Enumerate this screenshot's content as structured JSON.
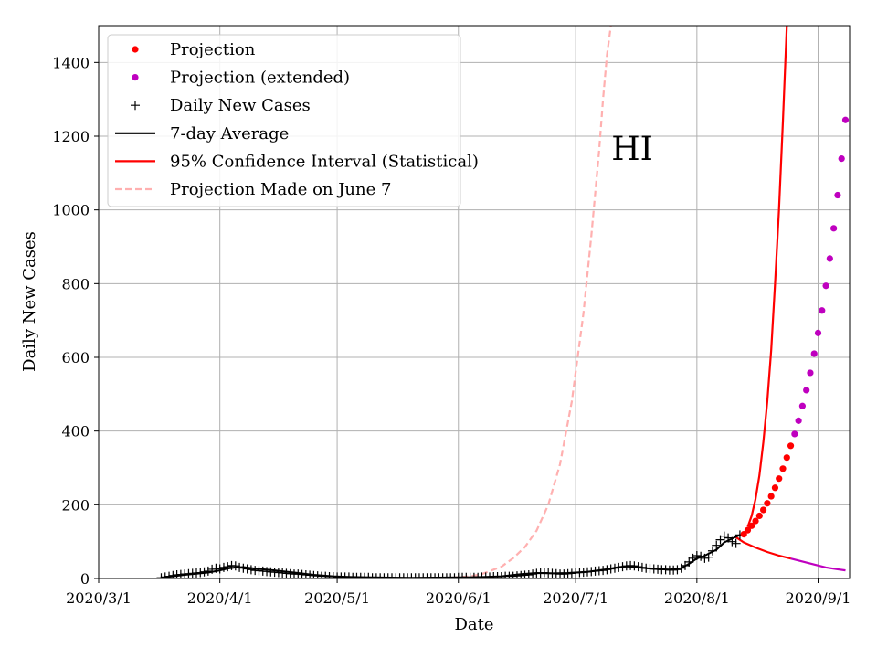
{
  "chart_data": {
    "type": "line",
    "state_label": "HI",
    "xlabel": "Date",
    "ylabel": "Daily New Cases",
    "x_range_days": [
      0,
      183
    ],
    "ylim": [
      0,
      1500
    ],
    "x_ticks": [
      {
        "day": 0,
        "label": "2020/3/1"
      },
      {
        "day": 31,
        "label": "2020/4/1"
      },
      {
        "day": 61,
        "label": "2020/5/1"
      },
      {
        "day": 92,
        "label": "2020/6/1"
      },
      {
        "day": 122,
        "label": "2020/7/1"
      },
      {
        "day": 153,
        "label": "2020/8/1"
      },
      {
        "day": 184,
        "label": "2020/9/1"
      }
    ],
    "y_ticks": [
      0,
      200,
      400,
      600,
      800,
      1000,
      1200,
      1400
    ],
    "grid": true,
    "legend_position": "top-left",
    "legend": [
      {
        "key": "projection",
        "label": "Projection",
        "marker": "dot",
        "color": "#ff0000"
      },
      {
        "key": "projection_ext",
        "label": "Projection (extended)",
        "marker": "dot",
        "color": "#bf00bf"
      },
      {
        "key": "daily",
        "label": "Daily New Cases",
        "marker": "plus",
        "color": "#000000"
      },
      {
        "key": "avg",
        "label": "7-day Average",
        "marker": "line",
        "color": "#000000"
      },
      {
        "key": "ci",
        "label": "95% Confidence Interval (Statistical)",
        "marker": "line",
        "color": "#ff0000"
      },
      {
        "key": "june7",
        "label": "Projection Made on June 7",
        "marker": "dash",
        "color": "#ffb0b0"
      }
    ],
    "daily_cases": {
      "start_day": 16,
      "values": [
        2,
        4,
        6,
        8,
        10,
        11,
        12,
        13,
        14,
        15,
        16,
        18,
        20,
        25,
        28,
        26,
        30,
        32,
        35,
        34,
        30,
        28,
        26,
        24,
        22,
        21,
        20,
        19,
        18,
        17,
        16,
        15,
        14,
        13,
        12,
        12,
        11,
        10,
        9,
        8,
        7,
        6,
        6,
        5,
        5,
        4,
        4,
        4,
        4,
        3,
        3,
        3,
        3,
        3,
        2,
        2,
        2,
        2,
        2,
        2,
        2,
        2,
        2,
        2,
        2,
        2,
        2,
        2,
        2,
        2,
        2,
        2,
        2,
        2,
        2,
        2,
        3,
        3,
        3,
        3,
        3,
        3,
        4,
        4,
        4,
        5,
        5,
        5,
        6,
        6,
        6,
        7,
        8,
        9,
        10,
        12,
        14,
        15,
        16,
        15,
        14,
        13,
        12,
        12,
        13,
        14,
        15,
        16,
        17,
        18,
        19,
        20,
        21,
        22,
        24,
        26,
        28,
        30,
        32,
        34,
        35,
        34,
        32,
        30,
        28,
        27,
        26,
        25,
        24,
        24,
        23,
        23,
        24,
        28,
        35,
        45,
        55,
        62,
        60,
        55,
        58,
        75,
        90,
        105,
        115,
        110,
        100,
        95,
        118
      ]
    },
    "seven_day_average": [
      [
        16,
        2
      ],
      [
        22,
        10
      ],
      [
        28,
        16
      ],
      [
        31,
        22
      ],
      [
        33,
        27
      ],
      [
        35,
        30
      ],
      [
        37,
        31
      ],
      [
        40,
        27
      ],
      [
        45,
        22
      ],
      [
        50,
        16
      ],
      [
        55,
        10
      ],
      [
        60,
        6
      ],
      [
        65,
        4
      ],
      [
        70,
        3
      ],
      [
        80,
        2
      ],
      [
        92,
        3
      ],
      [
        98,
        4
      ],
      [
        103,
        6
      ],
      [
        108,
        12
      ],
      [
        112,
        15
      ],
      [
        116,
        14
      ],
      [
        120,
        15
      ],
      [
        125,
        18
      ],
      [
        130,
        25
      ],
      [
        133,
        31
      ],
      [
        135,
        33
      ],
      [
        138,
        30
      ],
      [
        142,
        26
      ],
      [
        146,
        24
      ],
      [
        149,
        28
      ],
      [
        151,
        40
      ],
      [
        153,
        54
      ],
      [
        155,
        62
      ],
      [
        158,
        78
      ],
      [
        160,
        98
      ],
      [
        162,
        108
      ],
      [
        164,
        118
      ]
    ],
    "projection": [
      [
        165,
        120
      ],
      [
        166,
        131
      ],
      [
        167,
        143
      ],
      [
        168,
        156
      ],
      [
        169,
        170
      ],
      [
        170,
        186
      ],
      [
        171,
        204
      ],
      [
        172,
        223
      ],
      [
        173,
        246
      ],
      [
        174,
        271
      ],
      [
        175,
        298
      ],
      [
        176,
        328
      ],
      [
        177,
        360
      ]
    ],
    "projection_extended": [
      [
        178,
        392
      ],
      [
        179,
        428
      ],
      [
        180,
        468
      ],
      [
        181,
        511
      ],
      [
        182,
        558
      ],
      [
        183,
        610
      ],
      [
        184,
        666
      ],
      [
        185,
        727
      ],
      [
        186,
        794
      ],
      [
        187,
        868
      ],
      [
        188,
        950
      ],
      [
        189,
        1040
      ],
      [
        190,
        1139
      ],
      [
        191,
        1244
      ]
    ],
    "ci_upper": [
      [
        166,
        140
      ],
      [
        167,
        170
      ],
      [
        168,
        215
      ],
      [
        169,
        280
      ],
      [
        170,
        370
      ],
      [
        171,
        480
      ],
      [
        172,
        620
      ],
      [
        173,
        800
      ],
      [
        174,
        1000
      ],
      [
        175,
        1240
      ],
      [
        176,
        1500
      ]
    ],
    "ci_lower": [
      [
        163,
        112
      ],
      [
        165,
        98
      ],
      [
        168,
        84
      ],
      [
        171,
        72
      ],
      [
        174,
        62
      ],
      [
        177,
        54
      ],
      [
        180,
        46
      ],
      [
        183,
        38
      ],
      [
        186,
        30
      ],
      [
        189,
        25
      ],
      [
        191,
        22
      ]
    ],
    "june7_projection": [
      [
        80,
        0
      ],
      [
        90,
        2
      ],
      [
        95,
        6
      ],
      [
        98,
        12
      ],
      [
        100,
        20
      ],
      [
        103,
        32
      ],
      [
        106,
        55
      ],
      [
        109,
        85
      ],
      [
        112,
        130
      ],
      [
        115,
        200
      ],
      [
        118,
        310
      ],
      [
        121,
        480
      ],
      [
        124,
        720
      ],
      [
        126,
        930
      ],
      [
        128,
        1160
      ],
      [
        129,
        1300
      ],
      [
        130,
        1420
      ],
      [
        131,
        1500
      ]
    ]
  }
}
